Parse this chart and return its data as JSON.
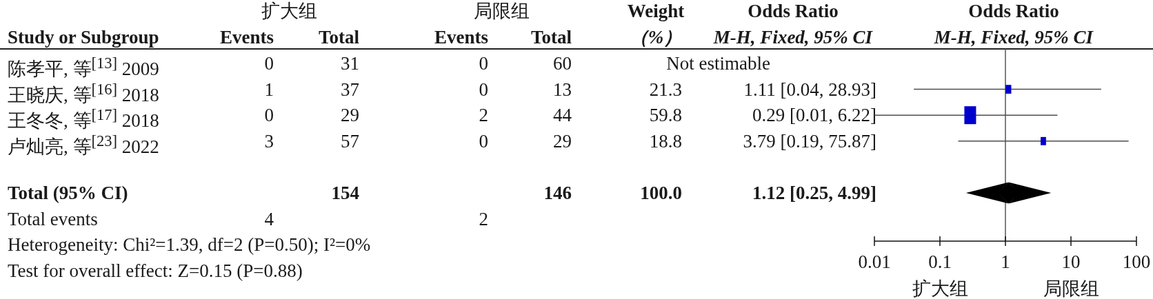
{
  "chart_data": [
    {
      "type": "other",
      "ylabel": "Study or Subgroup",
      "categories": [
        "陈孝平, 等$^{[13]}$ 2009",
        "王晓庆, 等$^{[16]}$ 2018",
        "王冬冬, 等$^{[17]}$ 2018",
        "卢灿亮, 等$^{[23]}$ 2022",
        null,
        "Total (95% CI)",
        "Total events"
      ],
      "series": [
        {
          "name": "Events",
          "values": [
            0,
            1,
            0,
            3,
            null,
            null,
            4
          ]
        },
        {
          "name": "Total",
          "values": [
            31,
            37,
            29,
            57,
            null,
            154,
            null
          ]
        },
        {
          "name": "Events",
          "values": [
            0,
            0,
            2,
            0,
            null,
            null,
            2
          ]
        },
        {
          "name": "Total",
          "values": [
            60,
            13,
            44,
            29,
            null,
            146,
            null
          ]
        },
        {
          "name": "Weight\n（%）",
          "values": [
            null,
            21.3,
            59.8,
            18.8,
            null,
            100.0,
            null
          ],
          "value_labels": [
            null,
            "21.3",
            "59.8",
            "18.8",
            null,
            "100.0",
            null
          ]
        },
        {
          "name": "Odds Ratio\nM-H, Fixed, 95% CI",
          "values": [
            null,
            1.11,
            0.29,
            3.79,
            null,
            1.12,
            null
          ],
          "value_labels": [
            "Not estimable",
            "1.11 [0.04, 28.93]",
            "0.29 [0.01, 6.22]",
            "3.79 [0.19, 75.87]",
            null,
            "1.12 [0.25, 4.99]",
            null
          ]
        }
      ],
      "data_labels": true,
      "annotations": [
        "扩大组",
        "局限组",
        "Heterogeneity: Chi²=1.39, df=2 (P=0.50); I²=0%",
        "Test for overall effect: Z=0.15 (P=0.88)"
      ]
    },
    {
      "type": "scatter",
      "orientation": "horizontal",
      "title": "Odds Ratio",
      "subtitle": "M-H, Fixed, 95% CI",
      "categories": [
        null,
        null,
        null,
        null,
        null,
        null,
        null
      ],
      "series": [
        {
          "marker": "square",
          "color": "#0000cc",
          "values": [
            null,
            1.11,
            0.29,
            3.79,
            null,
            null,
            null
          ],
          "errors": [
            null,
            [
              0.04,
              28.93
            ],
            [
              0.01,
              6.22
            ],
            [
              0.19,
              75.87
            ],
            null,
            null,
            null
          ],
          "sizes": [
            null,
            0.24,
            1,
            0.21,
            null,
            null,
            null
          ]
        },
        {
          "marker": "diamond",
          "color": "#000000",
          "values": [
            null,
            null,
            null,
            null,
            null,
            1.12,
            null
          ],
          "errors": [
            null,
            null,
            null,
            null,
            null,
            [
              0.25,
              4.99
            ],
            null
          ]
        }
      ],
      "log": "x",
      "xlim": [
        0.01,
        100
      ],
      "xticks": [
        0.01,
        0.1,
        1,
        10,
        100
      ],
      "tick_labels": "x",
      "ref_lines": [
        {
          "axis": "x",
          "value": 1,
          "color": "#555555"
        }
      ],
      "annotations": [
        "扩大组",
        "局限组"
      ]
    }
  ]
}
